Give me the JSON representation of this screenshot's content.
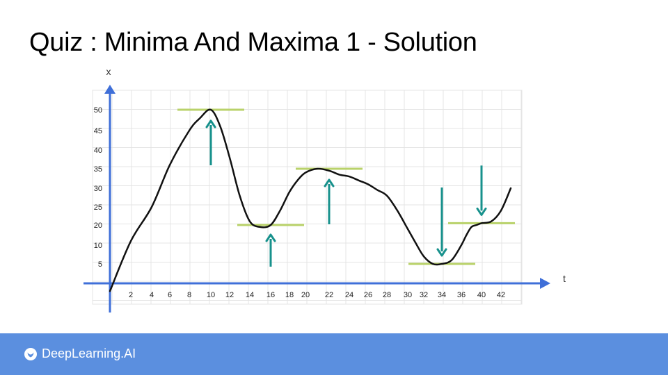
{
  "slide": {
    "title": "Quiz : Minima And Maxima 1 - Solution"
  },
  "footer": {
    "brand": "DeepLearning.AI",
    "background_color": "#5b8fdf"
  },
  "colors": {
    "axis": "#3f6fd8",
    "curve": "#111111",
    "arrow": "#17918c",
    "level_line": "#b9d26a",
    "grid": "#e4e4e4"
  },
  "chart_data": {
    "type": "line",
    "xlabel": "t",
    "ylabel": "x",
    "x_ticks": [
      2,
      4,
      6,
      8,
      10,
      12,
      14,
      16,
      18,
      20,
      22,
      24,
      26,
      28,
      30,
      32,
      34,
      36,
      40,
      42
    ],
    "y_ticks": [
      5,
      10,
      20,
      25,
      30,
      35,
      40,
      45,
      50
    ],
    "grid": true,
    "series": [
      {
        "x": [
          0,
          2,
          4,
          6,
          8,
          9,
          10,
          11,
          12,
          13,
          14,
          15,
          16,
          17,
          18,
          19,
          20,
          21,
          22,
          23,
          24,
          25,
          26,
          27,
          28,
          29,
          30,
          31,
          32,
          33,
          34,
          35,
          36,
          37,
          38,
          39,
          40,
          41,
          42,
          43
        ],
        "y": [
          -2,
          12,
          25,
          36,
          45,
          48,
          50,
          46,
          38,
          28,
          21,
          19,
          20,
          24,
          29,
          32,
          34,
          35,
          34.5,
          33.5,
          33,
          32,
          31,
          29.5,
          28,
          24,
          18,
          11,
          7,
          5,
          5,
          6,
          10,
          15,
          19,
          20,
          20.5,
          21,
          24,
          30
        ]
      }
    ],
    "extrema": [
      {
        "kind": "max",
        "t": 10,
        "x": 50
      },
      {
        "kind": "min",
        "t": 16,
        "x": 20
      },
      {
        "kind": "max",
        "t": 22,
        "x": 35
      },
      {
        "kind": "min",
        "t": 34,
        "x": 5
      },
      {
        "kind": "inflection",
        "t": 40,
        "x": 20.5
      }
    ]
  }
}
